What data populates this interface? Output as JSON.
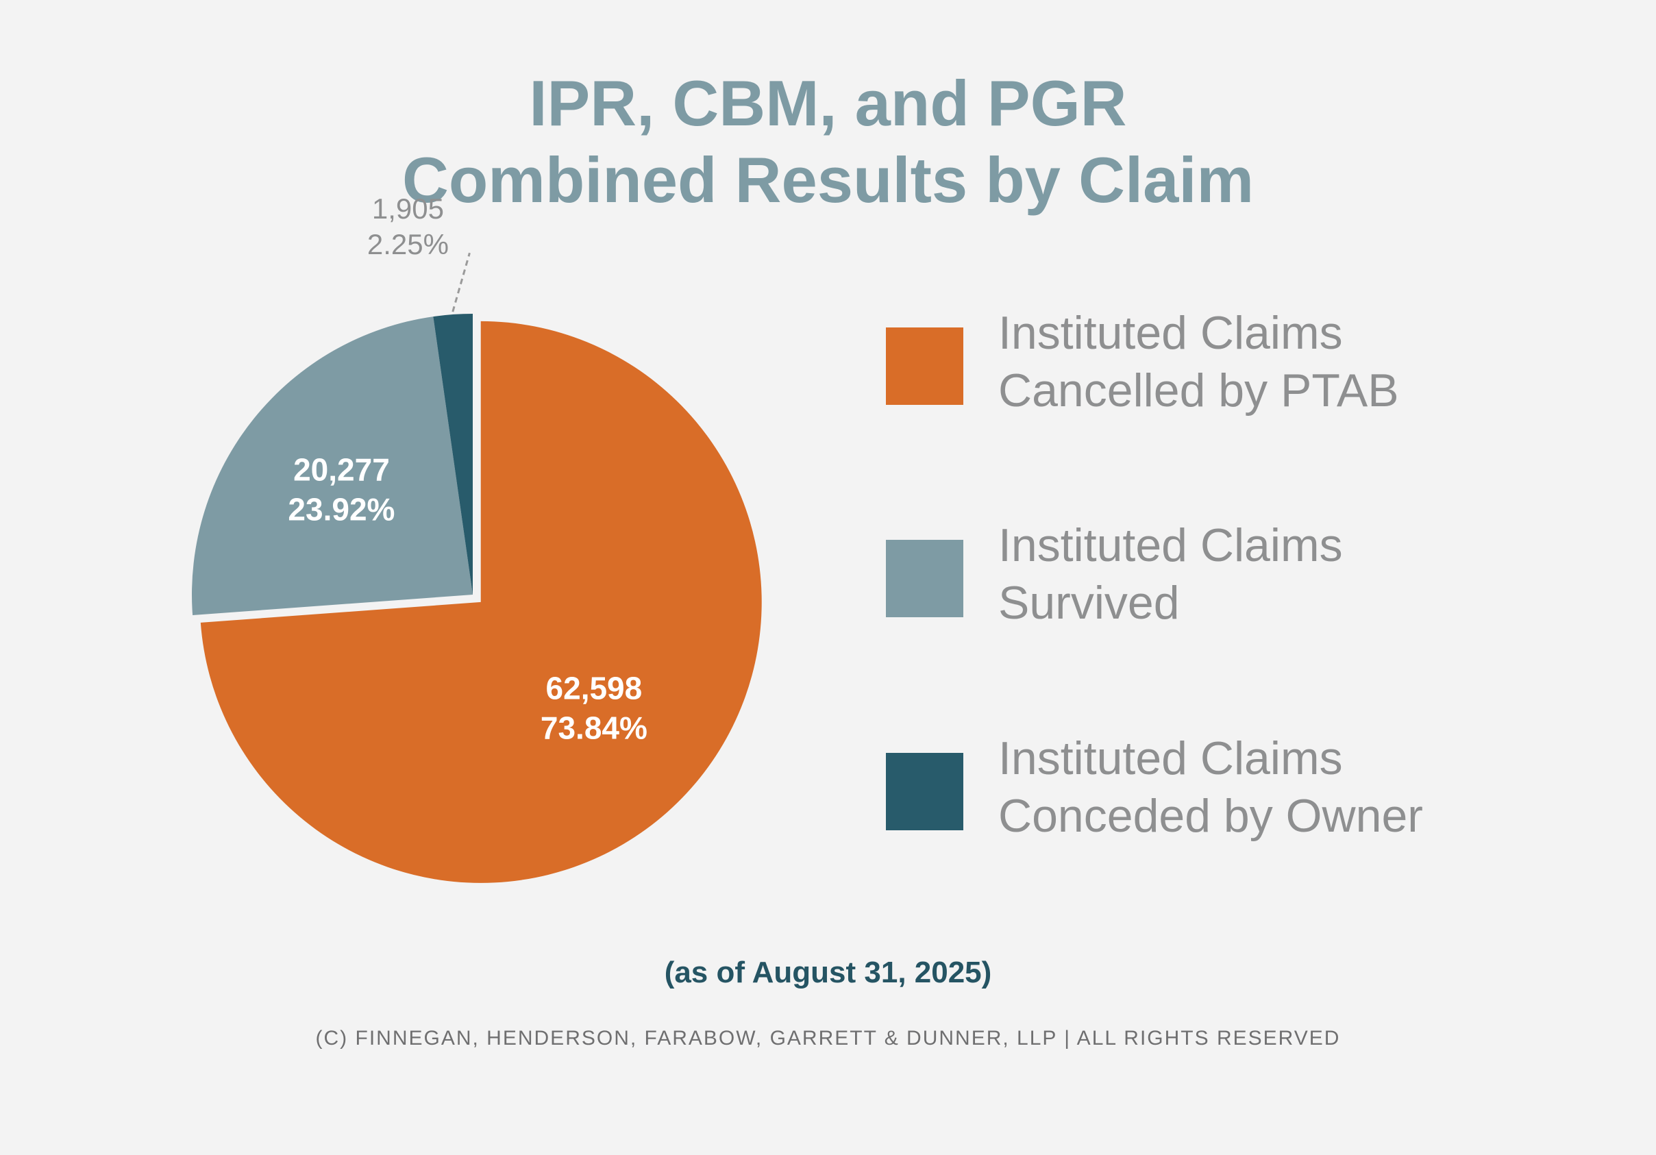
{
  "title": {
    "line1": "IPR, CBM, and PGR",
    "line2": "Combined Results by Claim"
  },
  "chart_data": {
    "type": "pie",
    "title": "IPR, CBM, and PGR Combined Results by Claim",
    "categories": [
      "Instituted Claims Cancelled by PTAB",
      "Instituted Claims Survived",
      "Instituted Claims Conceded by Owner"
    ],
    "values": [
      62598,
      20277,
      1905
    ],
    "percent_labels": [
      "73.84%",
      "23.92%",
      "2.25%"
    ],
    "value_labels": [
      "62,598",
      "20,277",
      "1,905"
    ],
    "colors": [
      "#d96d28",
      "#7e9ba4",
      "#285b6b"
    ],
    "label_colors": [
      "#ffffff",
      "#ffffff",
      "#8e8f90"
    ],
    "legend_position": "right"
  },
  "legend": {
    "items": [
      {
        "line1": "Instituted Claims",
        "line2": "Cancelled by PTAB",
        "color": "#d96d28"
      },
      {
        "line1": "Instituted Claims",
        "line2": "Survived",
        "color": "#7e9ba4"
      },
      {
        "line1": "Instituted Claims",
        "line2": "Conceded by Owner",
        "color": "#285b6b"
      }
    ]
  },
  "as_of": "(as of August 31, 2025)",
  "footer": "(C) Finnegan, Henderson, Farabow, Garrett & Dunner, LLP | All Rights Reserved"
}
